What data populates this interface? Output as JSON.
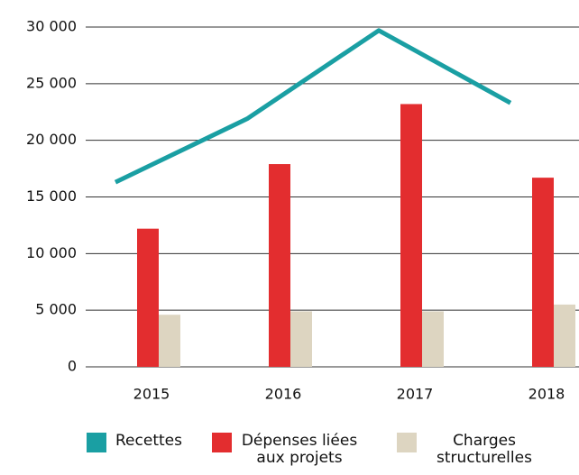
{
  "chart_data": {
    "type": "bar",
    "categories": [
      "2015",
      "2016",
      "2017",
      "2018"
    ],
    "series": [
      {
        "name": "Recettes",
        "type": "line",
        "color": "#1a9fa3",
        "values": [
          16300,
          21900,
          29700,
          23300
        ]
      },
      {
        "name": "Dépenses liées aux projets",
        "type": "bar",
        "color": "#e32d2f",
        "values": [
          12200,
          17900,
          23200,
          16700
        ]
      },
      {
        "name": "Charges structurelles",
        "type": "bar",
        "color": "#ddd5c1",
        "values": [
          4600,
          4900,
          4900,
          5500
        ]
      }
    ],
    "ylim": [
      0,
      30000
    ],
    "yticks": [
      0,
      {
        "value": 5000,
        "label": "5 000"
      },
      {
        "value": 10000,
        "label": "10 000"
      },
      {
        "value": 15000,
        "label": "15 000"
      },
      {
        "value": 20000,
        "label": "20 000"
      },
      {
        "value": 25000,
        "label": "25 000"
      },
      {
        "value": 30000,
        "label": "30 000"
      }
    ],
    "grid": true
  }
}
